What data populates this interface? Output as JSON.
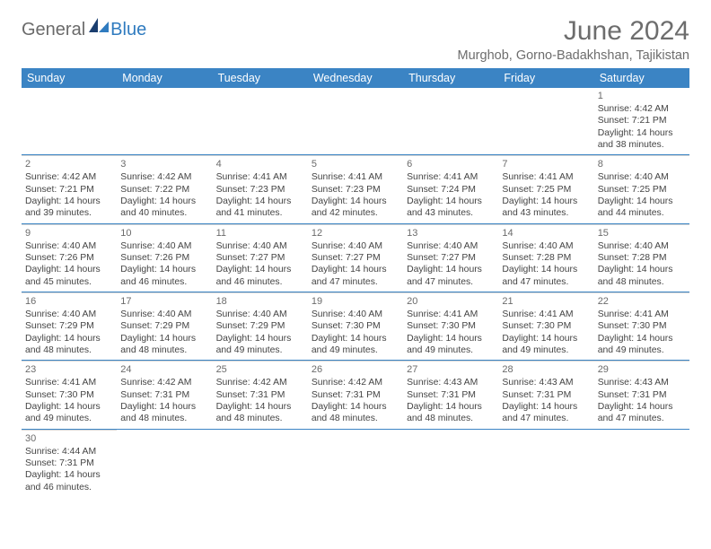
{
  "logo": {
    "part1": "General",
    "part2": "Blue"
  },
  "title": "June 2024",
  "location": "Murghob, Gorno-Badakhshan, Tajikistan",
  "weekdays": [
    "Sunday",
    "Monday",
    "Tuesday",
    "Wednesday",
    "Thursday",
    "Friday",
    "Saturday"
  ],
  "colors": {
    "header_bg": "#3b84c4",
    "header_text": "#ffffff",
    "title_color": "#6d6d6d",
    "cell_border": "#3b84c4",
    "text": "#444444"
  },
  "weeks": [
    [
      {
        "day": "",
        "sunrise": "",
        "sunset": "",
        "daylight1": "",
        "daylight2": ""
      },
      {
        "day": "",
        "sunrise": "",
        "sunset": "",
        "daylight1": "",
        "daylight2": ""
      },
      {
        "day": "",
        "sunrise": "",
        "sunset": "",
        "daylight1": "",
        "daylight2": ""
      },
      {
        "day": "",
        "sunrise": "",
        "sunset": "",
        "daylight1": "",
        "daylight2": ""
      },
      {
        "day": "",
        "sunrise": "",
        "sunset": "",
        "daylight1": "",
        "daylight2": ""
      },
      {
        "day": "",
        "sunrise": "",
        "sunset": "",
        "daylight1": "",
        "daylight2": ""
      },
      {
        "day": "1",
        "sunrise": "Sunrise: 4:42 AM",
        "sunset": "Sunset: 7:21 PM",
        "daylight1": "Daylight: 14 hours",
        "daylight2": "and 38 minutes."
      }
    ],
    [
      {
        "day": "2",
        "sunrise": "Sunrise: 4:42 AM",
        "sunset": "Sunset: 7:21 PM",
        "daylight1": "Daylight: 14 hours",
        "daylight2": "and 39 minutes."
      },
      {
        "day": "3",
        "sunrise": "Sunrise: 4:42 AM",
        "sunset": "Sunset: 7:22 PM",
        "daylight1": "Daylight: 14 hours",
        "daylight2": "and 40 minutes."
      },
      {
        "day": "4",
        "sunrise": "Sunrise: 4:41 AM",
        "sunset": "Sunset: 7:23 PM",
        "daylight1": "Daylight: 14 hours",
        "daylight2": "and 41 minutes."
      },
      {
        "day": "5",
        "sunrise": "Sunrise: 4:41 AM",
        "sunset": "Sunset: 7:23 PM",
        "daylight1": "Daylight: 14 hours",
        "daylight2": "and 42 minutes."
      },
      {
        "day": "6",
        "sunrise": "Sunrise: 4:41 AM",
        "sunset": "Sunset: 7:24 PM",
        "daylight1": "Daylight: 14 hours",
        "daylight2": "and 43 minutes."
      },
      {
        "day": "7",
        "sunrise": "Sunrise: 4:41 AM",
        "sunset": "Sunset: 7:25 PM",
        "daylight1": "Daylight: 14 hours",
        "daylight2": "and 43 minutes."
      },
      {
        "day": "8",
        "sunrise": "Sunrise: 4:40 AM",
        "sunset": "Sunset: 7:25 PM",
        "daylight1": "Daylight: 14 hours",
        "daylight2": "and 44 minutes."
      }
    ],
    [
      {
        "day": "9",
        "sunrise": "Sunrise: 4:40 AM",
        "sunset": "Sunset: 7:26 PM",
        "daylight1": "Daylight: 14 hours",
        "daylight2": "and 45 minutes."
      },
      {
        "day": "10",
        "sunrise": "Sunrise: 4:40 AM",
        "sunset": "Sunset: 7:26 PM",
        "daylight1": "Daylight: 14 hours",
        "daylight2": "and 46 minutes."
      },
      {
        "day": "11",
        "sunrise": "Sunrise: 4:40 AM",
        "sunset": "Sunset: 7:27 PM",
        "daylight1": "Daylight: 14 hours",
        "daylight2": "and 46 minutes."
      },
      {
        "day": "12",
        "sunrise": "Sunrise: 4:40 AM",
        "sunset": "Sunset: 7:27 PM",
        "daylight1": "Daylight: 14 hours",
        "daylight2": "and 47 minutes."
      },
      {
        "day": "13",
        "sunrise": "Sunrise: 4:40 AM",
        "sunset": "Sunset: 7:27 PM",
        "daylight1": "Daylight: 14 hours",
        "daylight2": "and 47 minutes."
      },
      {
        "day": "14",
        "sunrise": "Sunrise: 4:40 AM",
        "sunset": "Sunset: 7:28 PM",
        "daylight1": "Daylight: 14 hours",
        "daylight2": "and 47 minutes."
      },
      {
        "day": "15",
        "sunrise": "Sunrise: 4:40 AM",
        "sunset": "Sunset: 7:28 PM",
        "daylight1": "Daylight: 14 hours",
        "daylight2": "and 48 minutes."
      }
    ],
    [
      {
        "day": "16",
        "sunrise": "Sunrise: 4:40 AM",
        "sunset": "Sunset: 7:29 PM",
        "daylight1": "Daylight: 14 hours",
        "daylight2": "and 48 minutes."
      },
      {
        "day": "17",
        "sunrise": "Sunrise: 4:40 AM",
        "sunset": "Sunset: 7:29 PM",
        "daylight1": "Daylight: 14 hours",
        "daylight2": "and 48 minutes."
      },
      {
        "day": "18",
        "sunrise": "Sunrise: 4:40 AM",
        "sunset": "Sunset: 7:29 PM",
        "daylight1": "Daylight: 14 hours",
        "daylight2": "and 49 minutes."
      },
      {
        "day": "19",
        "sunrise": "Sunrise: 4:40 AM",
        "sunset": "Sunset: 7:30 PM",
        "daylight1": "Daylight: 14 hours",
        "daylight2": "and 49 minutes."
      },
      {
        "day": "20",
        "sunrise": "Sunrise: 4:41 AM",
        "sunset": "Sunset: 7:30 PM",
        "daylight1": "Daylight: 14 hours",
        "daylight2": "and 49 minutes."
      },
      {
        "day": "21",
        "sunrise": "Sunrise: 4:41 AM",
        "sunset": "Sunset: 7:30 PM",
        "daylight1": "Daylight: 14 hours",
        "daylight2": "and 49 minutes."
      },
      {
        "day": "22",
        "sunrise": "Sunrise: 4:41 AM",
        "sunset": "Sunset: 7:30 PM",
        "daylight1": "Daylight: 14 hours",
        "daylight2": "and 49 minutes."
      }
    ],
    [
      {
        "day": "23",
        "sunrise": "Sunrise: 4:41 AM",
        "sunset": "Sunset: 7:30 PM",
        "daylight1": "Daylight: 14 hours",
        "daylight2": "and 49 minutes."
      },
      {
        "day": "24",
        "sunrise": "Sunrise: 4:42 AM",
        "sunset": "Sunset: 7:31 PM",
        "daylight1": "Daylight: 14 hours",
        "daylight2": "and 48 minutes."
      },
      {
        "day": "25",
        "sunrise": "Sunrise: 4:42 AM",
        "sunset": "Sunset: 7:31 PM",
        "daylight1": "Daylight: 14 hours",
        "daylight2": "and 48 minutes."
      },
      {
        "day": "26",
        "sunrise": "Sunrise: 4:42 AM",
        "sunset": "Sunset: 7:31 PM",
        "daylight1": "Daylight: 14 hours",
        "daylight2": "and 48 minutes."
      },
      {
        "day": "27",
        "sunrise": "Sunrise: 4:43 AM",
        "sunset": "Sunset: 7:31 PM",
        "daylight1": "Daylight: 14 hours",
        "daylight2": "and 48 minutes."
      },
      {
        "day": "28",
        "sunrise": "Sunrise: 4:43 AM",
        "sunset": "Sunset: 7:31 PM",
        "daylight1": "Daylight: 14 hours",
        "daylight2": "and 47 minutes."
      },
      {
        "day": "29",
        "sunrise": "Sunrise: 4:43 AM",
        "sunset": "Sunset: 7:31 PM",
        "daylight1": "Daylight: 14 hours",
        "daylight2": "and 47 minutes."
      }
    ],
    [
      {
        "day": "30",
        "sunrise": "Sunrise: 4:44 AM",
        "sunset": "Sunset: 7:31 PM",
        "daylight1": "Daylight: 14 hours",
        "daylight2": "and 46 minutes."
      },
      {
        "day": "",
        "sunrise": "",
        "sunset": "",
        "daylight1": "",
        "daylight2": ""
      },
      {
        "day": "",
        "sunrise": "",
        "sunset": "",
        "daylight1": "",
        "daylight2": ""
      },
      {
        "day": "",
        "sunrise": "",
        "sunset": "",
        "daylight1": "",
        "daylight2": ""
      },
      {
        "day": "",
        "sunrise": "",
        "sunset": "",
        "daylight1": "",
        "daylight2": ""
      },
      {
        "day": "",
        "sunrise": "",
        "sunset": "",
        "daylight1": "",
        "daylight2": ""
      },
      {
        "day": "",
        "sunrise": "",
        "sunset": "",
        "daylight1": "",
        "daylight2": ""
      }
    ]
  ]
}
